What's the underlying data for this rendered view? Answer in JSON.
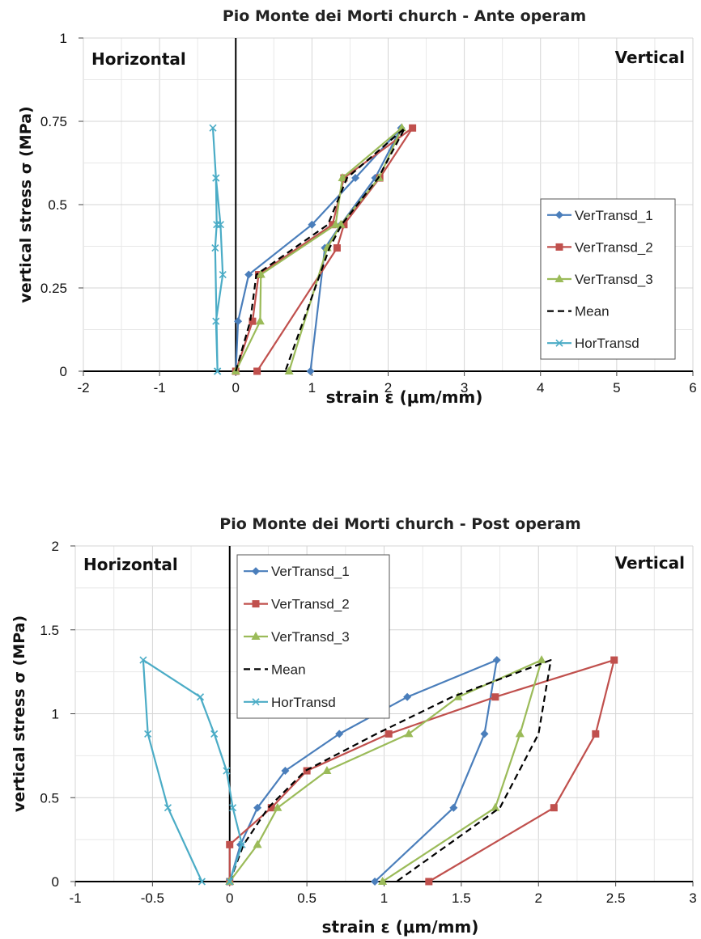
{
  "chart_data": [
    {
      "type": "line",
      "title": "Pio Monte dei Morti church - Ante operam",
      "xlabel": "strain ε (μm/mm)",
      "ylabel": "vertical stress σ (MPa)",
      "xlim": [
        -2,
        6
      ],
      "ylim": [
        0,
        1
      ],
      "xticks": [
        "-2",
        "-1",
        "0",
        "1",
        "2",
        "3",
        "4",
        "5",
        "6"
      ],
      "yticks": [
        "0",
        "0.25",
        "0.5",
        "0.75",
        "1"
      ],
      "grid": true,
      "legend_position": "right",
      "annotations": {
        "left": "Horizontal",
        "right": "Vertical"
      },
      "series": [
        {
          "name": "VerTransd_1",
          "color": "#4a7ebb",
          "marker": "diamond",
          "points": [
            [
              0,
              0
            ],
            [
              0.03,
              0.15
            ],
            [
              0.17,
              0.29
            ],
            [
              1.0,
              0.44
            ],
            [
              1.57,
              0.58
            ],
            [
              2.17,
              0.73
            ],
            [
              1.83,
              0.58
            ],
            [
              1.38,
              0.44
            ],
            [
              1.17,
              0.37
            ],
            [
              0.98,
              0
            ]
          ]
        },
        {
          "name": "VerTransd_2",
          "color": "#c0504d",
          "marker": "square",
          "points": [
            [
              0,
              0
            ],
            [
              0.22,
              0.15
            ],
            [
              0.3,
              0.29
            ],
            [
              1.27,
              0.44
            ],
            [
              1.42,
              0.58
            ],
            [
              2.32,
              0.73
            ],
            [
              1.89,
              0.58
            ],
            [
              1.42,
              0.44
            ],
            [
              1.33,
              0.37
            ],
            [
              0.28,
              0
            ]
          ]
        },
        {
          "name": "VerTransd_3",
          "color": "#9bbb59",
          "marker": "triangle",
          "points": [
            [
              0,
              0
            ],
            [
              0.32,
              0.15
            ],
            [
              0.33,
              0.29
            ],
            [
              1.31,
              0.44
            ],
            [
              1.4,
              0.58
            ],
            [
              2.18,
              0.73
            ],
            [
              1.88,
              0.58
            ],
            [
              1.38,
              0.44
            ],
            [
              1.2,
              0.37
            ],
            [
              0.7,
              0
            ]
          ]
        },
        {
          "name": "Mean",
          "color": "#000000",
          "dash": true,
          "points": [
            [
              0,
              0
            ],
            [
              0.19,
              0.15
            ],
            [
              0.27,
              0.29
            ],
            [
              1.21,
              0.44
            ],
            [
              1.46,
              0.58
            ],
            [
              2.22,
              0.73
            ],
            [
              1.87,
              0.58
            ],
            [
              1.39,
              0.44
            ],
            [
              1.23,
              0.37
            ],
            [
              0.65,
              0
            ]
          ]
        },
        {
          "name": "HorTransd",
          "color": "#4bacc6",
          "marker": "x",
          "points": [
            [
              -0.24,
              0
            ],
            [
              -0.26,
              0.15
            ],
            [
              -0.17,
              0.29
            ],
            [
              -0.2,
              0.44
            ],
            [
              -0.26,
              0.58
            ],
            [
              -0.3,
              0.73
            ],
            [
              -0.26,
              0.58
            ],
            [
              -0.25,
              0.44
            ],
            [
              -0.27,
              0.37
            ],
            [
              -0.24,
              0
            ]
          ]
        }
      ]
    },
    {
      "type": "line",
      "title": "Pio Monte dei Morti church - Post operam",
      "xlabel": "strain ε (μm/mm)",
      "ylabel": "vertical stress σ (MPa)",
      "xlim": [
        -1,
        3
      ],
      "ylim": [
        0,
        2
      ],
      "xticks": [
        "-1",
        "-0.5",
        "0",
        "0.5",
        "1",
        "1.5",
        "2",
        "2.5",
        "3"
      ],
      "yticks": [
        "0",
        "0.5",
        "1",
        "1.5",
        "2"
      ],
      "grid": true,
      "legend_position": "top-center",
      "annotations": {
        "left": "Horizontal",
        "right": "Vertical"
      },
      "series": [
        {
          "name": "VerTransd_1",
          "color": "#4a7ebb",
          "marker": "diamond",
          "points": [
            [
              0,
              0
            ],
            [
              0.07,
              0.22
            ],
            [
              0.18,
              0.44
            ],
            [
              0.36,
              0.66
            ],
            [
              0.71,
              0.88
            ],
            [
              1.15,
              1.1
            ],
            [
              1.73,
              1.32
            ],
            [
              1.65,
              0.88
            ],
            [
              1.45,
              0.44
            ],
            [
              0.94,
              0
            ]
          ]
        },
        {
          "name": "VerTransd_2",
          "color": "#c0504d",
          "marker": "square",
          "points": [
            [
              0,
              0
            ],
            [
              0,
              0.22
            ],
            [
              0.27,
              0.44
            ],
            [
              0.5,
              0.66
            ],
            [
              1.03,
              0.88
            ],
            [
              1.72,
              1.1
            ],
            [
              2.49,
              1.32
            ],
            [
              2.37,
              0.88
            ],
            [
              2.1,
              0.44
            ],
            [
              1.29,
              0
            ]
          ]
        },
        {
          "name": "VerTransd_3",
          "color": "#9bbb59",
          "marker": "triangle",
          "points": [
            [
              0,
              0
            ],
            [
              0.18,
              0.22
            ],
            [
              0.31,
              0.44
            ],
            [
              0.63,
              0.66
            ],
            [
              1.16,
              0.88
            ],
            [
              1.48,
              1.1
            ],
            [
              2.02,
              1.32
            ],
            [
              1.88,
              0.88
            ],
            [
              1.72,
              0.44
            ],
            [
              0.99,
              0
            ]
          ]
        },
        {
          "name": "Mean",
          "color": "#000000",
          "dash": true,
          "points": [
            [
              0,
              0
            ],
            [
              0.09,
              0.22
            ],
            [
              0.25,
              0.44
            ],
            [
              0.49,
              0.66
            ],
            [
              0.95,
              0.88
            ],
            [
              1.44,
              1.1
            ],
            [
              2.08,
              1.32
            ],
            [
              2.0,
              0.88
            ],
            [
              1.75,
              0.44
            ],
            [
              1.08,
              0
            ]
          ]
        },
        {
          "name": "HorTransd",
          "color": "#4bacc6",
          "marker": "x",
          "points": [
            [
              -0.18,
              0
            ],
            [
              -0.4,
              0.44
            ],
            [
              -0.53,
              0.88
            ],
            [
              -0.56,
              1.32
            ],
            [
              -0.19,
              1.1
            ],
            [
              -0.1,
              0.88
            ],
            [
              -0.02,
              0.66
            ],
            [
              0.02,
              0.44
            ],
            [
              0.08,
              0.22
            ],
            [
              0,
              0
            ]
          ]
        }
      ]
    }
  ]
}
